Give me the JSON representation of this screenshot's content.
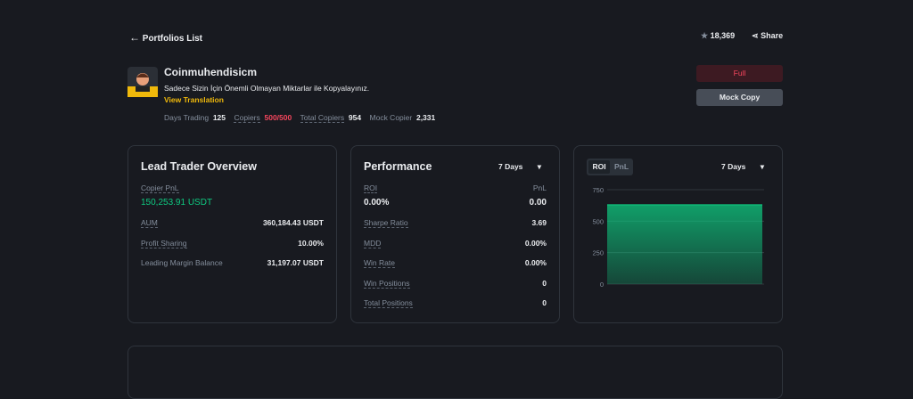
{
  "header": {
    "back": "Portfolios List",
    "stars": "18,369",
    "share": "Share"
  },
  "trader": {
    "name": "Coinmuhendisicm",
    "bio": "Sadece Sizin İçin Önemli Olmayan Miktarlar ile Kopyalayınız.",
    "translate": "View Translation",
    "stats": [
      {
        "label": "Days Trading",
        "value": "125"
      },
      {
        "label": "Copiers",
        "value": "500/500"
      },
      {
        "label": "Total Copiers",
        "value": "954"
      },
      {
        "label": "Mock Copier",
        "value": "2,331"
      }
    ],
    "full_button": "Full",
    "mock_button": "Mock Copy"
  },
  "overview": {
    "title": "Lead Trader Overview",
    "pnl_label": "Copier PnL",
    "pnl_value": "150,253.91 USDT",
    "rows": [
      {
        "label": "AUM",
        "value": "360,184.43 USDT"
      },
      {
        "label": "Profit Sharing",
        "value": "10.00%"
      },
      {
        "label": "Leading Margin Balance",
        "value": "31,197.07 USDT"
      }
    ]
  },
  "performance": {
    "title": "Performance",
    "period": "7 Days",
    "roi_label": "ROI",
    "pnl_label": "PnL",
    "roi": "0.00%",
    "pnl": "0.00",
    "rows": [
      {
        "label": "Sharpe Ratio",
        "value": "3.69"
      },
      {
        "label": "MDD",
        "value": "0.00%"
      },
      {
        "label": "Win Rate",
        "value": "0.00%"
      },
      {
        "label": "Win Positions",
        "value": "0"
      },
      {
        "label": "Total Positions",
        "value": "0"
      }
    ]
  },
  "chart_panel": {
    "tabs": [
      "ROI",
      "PnL"
    ],
    "period": "7 Days",
    "chart_data": {
      "type": "area",
      "categories": [
        null,
        null,
        null,
        null,
        null,
        null,
        null
      ],
      "values": [
        630,
        630,
        630,
        630,
        630,
        630,
        630
      ],
      "color": "#0ecb81",
      "ylim": [
        0,
        750
      ],
      "yticks": [
        0,
        250,
        500,
        750
      ],
      "grid": true
    }
  }
}
